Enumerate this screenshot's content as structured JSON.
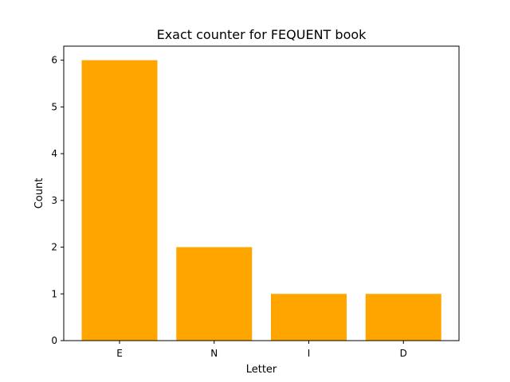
{
  "chart_data": {
    "type": "bar",
    "title": "Exact counter for FEQUENT book",
    "xlabel": "Letter",
    "ylabel": "Count",
    "categories": [
      "E",
      "N",
      "I",
      "D"
    ],
    "values": [
      6,
      2,
      1,
      1
    ],
    "ylim": [
      0,
      6.3
    ],
    "yticks": [
      0,
      1,
      2,
      3,
      4,
      5,
      6
    ],
    "bar_color": "#ffa500",
    "grid": false,
    "legend": "none"
  }
}
